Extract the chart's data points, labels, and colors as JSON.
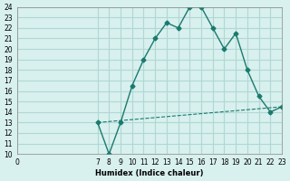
{
  "xlabel": "Humidex (Indice chaleur)",
  "bg_color": "#d8f0ee",
  "grid_color": "#b0d8d4",
  "line_color": "#1a7a6e",
  "curve1_x": [
    7,
    8,
    9,
    10,
    11,
    12,
    13,
    14,
    15,
    16,
    17,
    18,
    19,
    20,
    21,
    22,
    23
  ],
  "curve1_y": [
    13,
    10,
    13,
    16.5,
    19,
    21,
    22.5,
    22,
    24,
    24,
    22,
    20,
    21.5,
    18,
    15.5,
    14,
    14.5
  ],
  "curve2_x": [
    7,
    23
  ],
  "curve2_y": [
    13,
    14.5
  ],
  "xlim": [
    0,
    23
  ],
  "ylim": [
    10,
    24
  ],
  "yticks": [
    10,
    11,
    12,
    13,
    14,
    15,
    16,
    17,
    18,
    19,
    20,
    21,
    22,
    23,
    24
  ],
  "xticks": [
    0,
    7,
    8,
    9,
    10,
    11,
    12,
    13,
    14,
    15,
    16,
    17,
    18,
    19,
    20,
    21,
    22,
    23
  ]
}
